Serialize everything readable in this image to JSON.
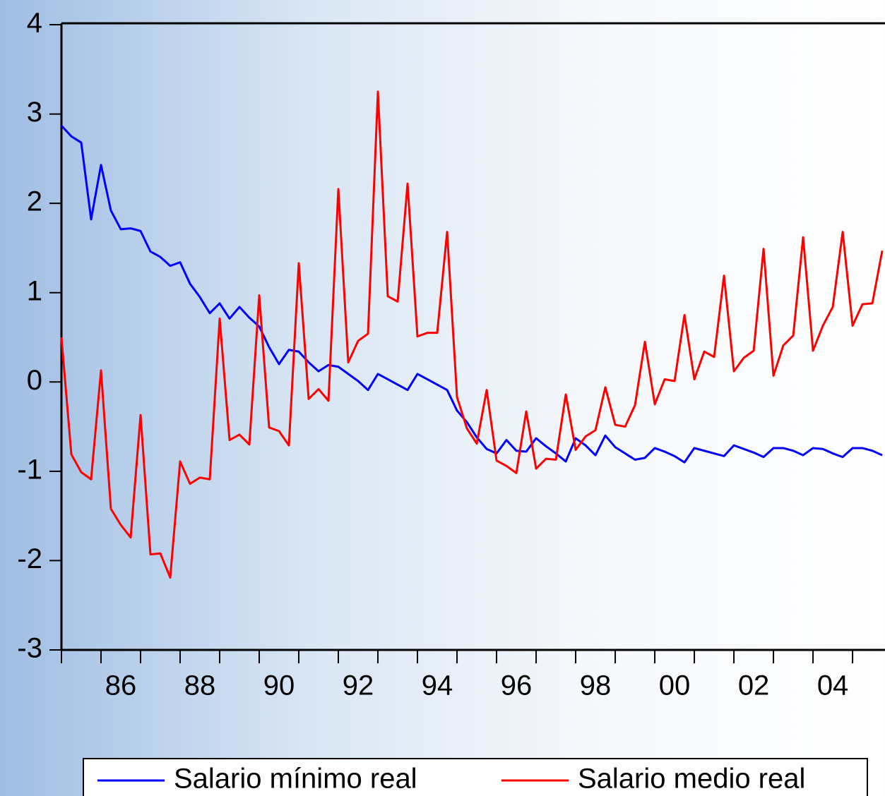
{
  "chart_data": {
    "type": "line",
    "x": [
      1985,
      1985.25,
      1985.5,
      1985.75,
      1986,
      1986.25,
      1986.5,
      1986.75,
      1987,
      1987.25,
      1987.5,
      1987.75,
      1988,
      1988.25,
      1988.5,
      1988.75,
      1989,
      1989.25,
      1989.5,
      1989.75,
      1990,
      1990.25,
      1990.5,
      1990.75,
      1991,
      1991.25,
      1991.5,
      1991.75,
      1992,
      1992.25,
      1992.5,
      1992.75,
      1993,
      1993.25,
      1993.5,
      1993.75,
      1994,
      1994.25,
      1994.5,
      1994.75,
      1995,
      1995.25,
      1995.5,
      1995.75,
      1996,
      1996.25,
      1996.5,
      1996.75,
      1997,
      1997.25,
      1997.5,
      1997.75,
      1998,
      1998.25,
      1998.5,
      1998.75,
      1999,
      1999.25,
      1999.5,
      1999.75,
      2000,
      2000.25,
      2000.5,
      2000.75,
      2001,
      2001.25,
      2001.5,
      2001.75,
      2002,
      2002.25,
      2002.5,
      2002.75,
      2003,
      2003.25,
      2003.5,
      2003.75,
      2004,
      2004.25,
      2004.5,
      2004.75,
      2005,
      2005.25,
      2005.5,
      2005.75
    ],
    "series": [
      {
        "name": "Salario mínimo real",
        "color": "#0000ff",
        "values": [
          2.87,
          2.75,
          2.68,
          1.82,
          2.43,
          1.92,
          1.71,
          1.72,
          1.69,
          1.46,
          1.4,
          1.3,
          1.34,
          1.1,
          0.95,
          0.77,
          0.88,
          0.71,
          0.84,
          0.72,
          0.62,
          0.39,
          0.2,
          0.36,
          0.34,
          0.22,
          0.12,
          0.19,
          0.17,
          0.09,
          0.01,
          -0.09,
          0.09,
          0.03,
          -0.03,
          -0.09,
          0.09,
          0.03,
          -0.03,
          -0.09,
          -0.32,
          -0.45,
          -0.62,
          -0.75,
          -0.8,
          -0.65,
          -0.77,
          -0.78,
          -0.63,
          -0.72,
          -0.8,
          -0.89,
          -0.63,
          -0.71,
          -0.82,
          -0.6,
          -0.73,
          -0.8,
          -0.87,
          -0.85,
          -0.74,
          -0.78,
          -0.83,
          -0.9,
          -0.74,
          -0.77,
          -0.8,
          -0.83,
          -0.71,
          -0.75,
          -0.79,
          -0.84,
          -0.74,
          -0.74,
          -0.77,
          -0.82,
          -0.74,
          -0.75,
          -0.8,
          -0.84,
          -0.74,
          -0.74,
          -0.77,
          -0.82
        ]
      },
      {
        "name": "Salario medio real",
        "color": "#ff0000",
        "values": [
          0.5,
          -0.81,
          -1.01,
          -1.09,
          0.13,
          -1.42,
          -1.6,
          -1.74,
          -0.37,
          -1.93,
          -1.92,
          -2.19,
          -0.89,
          -1.14,
          -1.07,
          -1.09,
          0.71,
          -0.65,
          -0.59,
          -0.7,
          0.97,
          -0.51,
          -0.55,
          -0.71,
          1.33,
          -0.19,
          -0.08,
          -0.21,
          2.16,
          0.22,
          0.46,
          0.54,
          3.25,
          0.96,
          0.9,
          2.22,
          0.51,
          0.55,
          0.55,
          1.68,
          -0.17,
          -0.52,
          -0.69,
          -0.09,
          -0.88,
          -0.94,
          -1.02,
          -0.33,
          -0.97,
          -0.86,
          -0.87,
          -0.14,
          -0.76,
          -0.61,
          -0.54,
          -0.06,
          -0.48,
          -0.5,
          -0.26,
          0.45,
          -0.25,
          0.03,
          0.01,
          0.75,
          0.03,
          0.34,
          0.28,
          1.19,
          0.12,
          0.27,
          0.35,
          1.49,
          0.07,
          0.41,
          0.52,
          1.62,
          0.35,
          0.63,
          0.84,
          1.68,
          0.63,
          0.87,
          0.88,
          1.47
        ]
      }
    ],
    "xlim": [
      1985,
      2005.82
    ],
    "xticks": [
      {
        "value": 1986.5,
        "label": "86"
      },
      {
        "value": 1988.5,
        "label": "88"
      },
      {
        "value": 1990.5,
        "label": "90"
      },
      {
        "value": 1992.5,
        "label": "92"
      },
      {
        "value": 1994.5,
        "label": "94"
      },
      {
        "value": 1996.5,
        "label": "96"
      },
      {
        "value": 1998.5,
        "label": "98"
      },
      {
        "value": 2000.5,
        "label": "00"
      },
      {
        "value": 2002.5,
        "label": "02"
      },
      {
        "value": 2004.5,
        "label": "04"
      }
    ],
    "xtick_marks": [
      1985,
      1986,
      1987,
      1988,
      1989,
      1990,
      1991,
      1992,
      1993,
      1994,
      1995,
      1996,
      1997,
      1998,
      1999,
      2000,
      2001,
      2002,
      2003,
      2004,
      2005
    ],
    "ylim": [
      -3,
      4
    ],
    "yticks": [
      -3,
      -2,
      -1,
      0,
      1,
      2,
      3,
      4
    ],
    "legend": "bottom"
  }
}
